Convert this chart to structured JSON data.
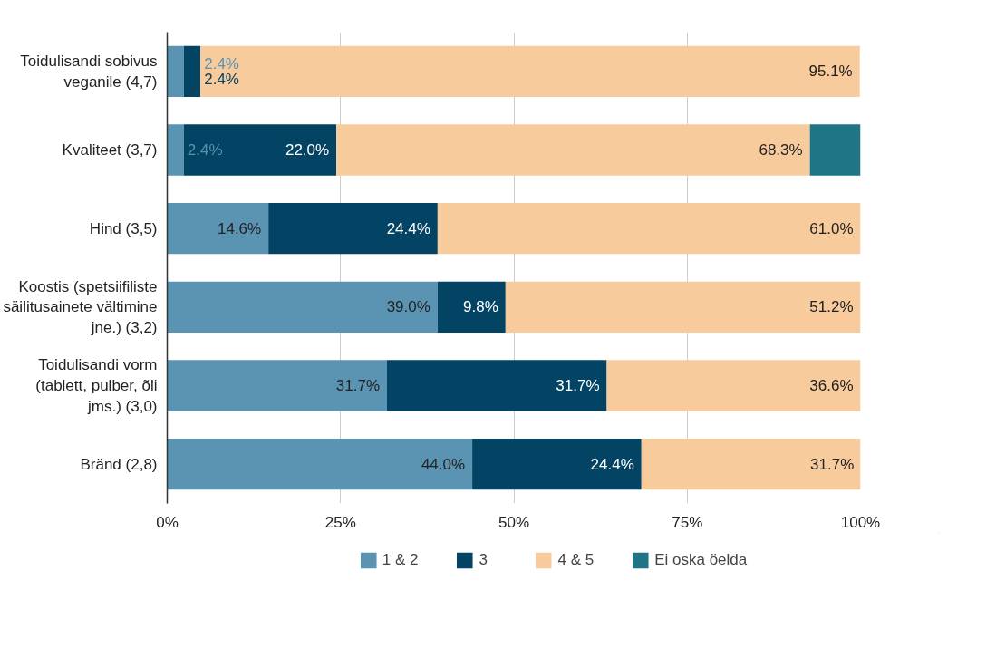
{
  "chart_data": {
    "type": "bar",
    "orientation": "horizontal",
    "stacked": true,
    "categories": [
      "Toidulisandi sobivus veganile (4,7)",
      "Kvaliteet (3,7)",
      "Hind (3,5)",
      "Koostis (spetsiifiliste säilitusainete vältimine jne.) (3,2)",
      "Toidulisandi vorm (tablett, pulber, õli jms.) (3,0)",
      "Bränd (2,8)"
    ],
    "series": [
      {
        "name": "1 & 2",
        "color": "#5b93b3",
        "values": [
          2.4,
          2.4,
          14.6,
          39.0,
          31.7,
          44.0
        ],
        "value_labels": [
          "2.4%",
          "2.4%",
          "14.6%",
          "39.0%",
          "31.7%",
          "44.0%"
        ]
      },
      {
        "name": "3",
        "color": "#034363",
        "values": [
          2.4,
          22.0,
          24.4,
          9.8,
          31.7,
          24.4
        ],
        "value_labels": [
          "2.4%",
          "22.0%",
          "24.4%",
          "9.8%",
          "31.7%",
          "24.4%"
        ]
      },
      {
        "name": "4 & 5",
        "color": "#f8cb9d",
        "values": [
          95.1,
          68.3,
          61.0,
          51.2,
          36.6,
          31.7
        ],
        "value_labels": [
          "95.1%",
          "68.3%",
          "61.0%",
          "51.2%",
          "36.6%",
          "31.7%"
        ]
      },
      {
        "name": "Ei oska öelda",
        "color": "#1f7585",
        "values": [
          null,
          7.3,
          null,
          null,
          null,
          null
        ],
        "value_labels": [
          null,
          null,
          null,
          null,
          null,
          null
        ]
      }
    ],
    "xlim": [
      0,
      100
    ],
    "xticks": [
      {
        "value": 0,
        "label": "0%"
      },
      {
        "value": 25,
        "label": "25%"
      },
      {
        "value": 50,
        "label": "50%"
      },
      {
        "value": 75,
        "label": "75%"
      },
      {
        "value": 100,
        "label": "100%"
      }
    ],
    "grid": "x",
    "legend": "bottom"
  }
}
